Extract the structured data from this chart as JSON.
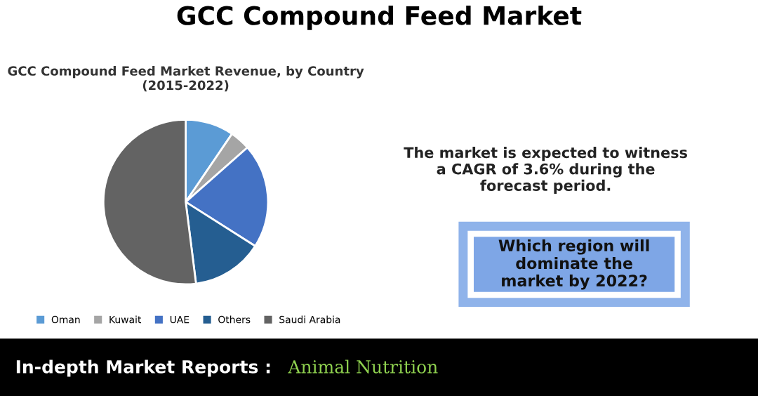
{
  "chart_data": {
    "type": "pie",
    "title": "GCC Compound Feed Market",
    "subtitle": "GCC Compound Feed Market Revenue, by Country\n(2015-2022)",
    "categories": [
      "Oman",
      "Kuwait",
      "UAE",
      "Others",
      "Saudi Arabia"
    ],
    "values": [
      9.5,
      4,
      20.5,
      14,
      52
    ],
    "colors": [
      "#5b9bd5",
      "#a5a5a5",
      "#4472c4",
      "#255e91",
      "#636363"
    ],
    "legend": "bottom",
    "annotations": [
      "The market is expected to witness\na CAGR of 3.6% during the\nforecast period.",
      "Which region will\ndominate the\nmarket by 2022?",
      "In-depth Market Reports :",
      "Animal Nutrition"
    ]
  }
}
